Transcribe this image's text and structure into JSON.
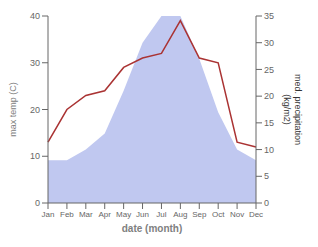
{
  "chart_data": {
    "type": "line",
    "categories": [
      "Jan",
      "Feb",
      "Mar",
      "Apr",
      "May",
      "Jun",
      "Jul",
      "Aug",
      "Sep",
      "Oct",
      "Nov",
      "Dec"
    ],
    "xlabel": "date (month)",
    "ylabel": "max temp (C)",
    "y2label": "med. precipitation\n(kg/m2)",
    "series": [
      {
        "type": "line",
        "color": "#aa3333",
        "values": [
          13,
          20,
          23,
          24,
          29,
          31,
          32,
          39,
          31,
          30,
          13,
          12
        ]
      },
      {
        "type": "area",
        "axis": "y2",
        "color": "#c0c8f0",
        "values": [
          8,
          8,
          10,
          13,
          21,
          30,
          35,
          35,
          27,
          17,
          10,
          8
        ]
      }
    ],
    "ylim": [
      0,
      40
    ],
    "yticks": [
      0,
      10,
      20,
      30,
      40
    ],
    "y2lim": [
      0,
      35
    ],
    "y2ticks": [
      0,
      5,
      10,
      15,
      20,
      25,
      30,
      35
    ],
    "grid": false
  }
}
